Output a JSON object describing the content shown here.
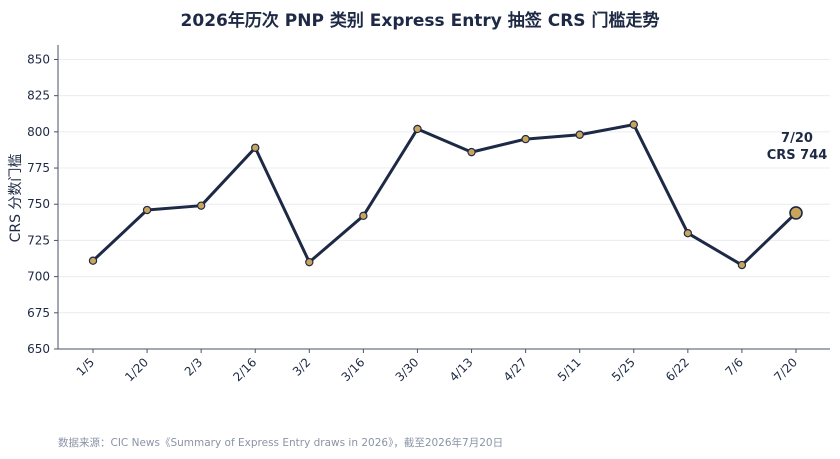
{
  "chart_data": {
    "type": "line",
    "title": "2026年历次 PNP 类别 Express Entry 抽签 CRS 门槛走势",
    "xlabel": "",
    "ylabel": "CRS 分数门槛",
    "categories": [
      "1/5",
      "1/20",
      "2/3",
      "2/16",
      "3/2",
      "3/16",
      "3/30",
      "4/13",
      "4/27",
      "5/11",
      "5/25",
      "6/22",
      "7/6",
      "7/20"
    ],
    "series": [
      {
        "values": [
          711,
          746,
          749,
          789,
          710,
          742,
          802,
          786,
          795,
          798,
          805,
          730,
          708,
          744
        ]
      }
    ],
    "ylim": [
      650,
      860
    ],
    "yticks": [
      "650",
      "675",
      "700",
      "725",
      "750",
      "775",
      "800",
      "825",
      "850"
    ],
    "grid": true,
    "annotation": {
      "line1": "7/20",
      "line2": "CRS 744"
    },
    "colors": {
      "line": "#1e2a45",
      "marker_fill": "#c9a55c",
      "marker_stroke": "#1e2a45",
      "grid": "#e9ecf1",
      "axis": "#4a5266"
    }
  },
  "source_note": "数据来源：CIC News《Summary of Express Entry draws in 2026》，截至2026年7月20日"
}
